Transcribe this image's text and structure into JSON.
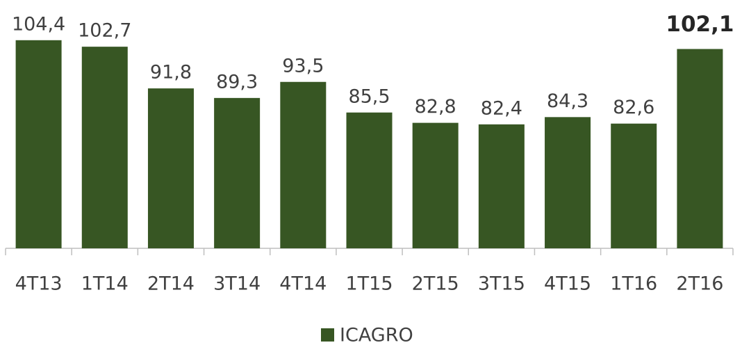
{
  "chart_data": {
    "type": "bar",
    "categories": [
      "4T13",
      "1T14",
      "2T14",
      "3T14",
      "4T14",
      "1T15",
      "2T15",
      "3T15",
      "4T15",
      "1T16",
      "2T16"
    ],
    "series": [
      {
        "name": "ICAGRO",
        "color": "#375623",
        "values": [
          104.4,
          102.7,
          91.8,
          89.3,
          93.5,
          85.5,
          82.8,
          82.4,
          84.3,
          82.6,
          102.1
        ],
        "value_labels": [
          "104,4",
          "102,7",
          "91,8",
          "89,3",
          "93,5",
          "85,5",
          "82,8",
          "82,4",
          "84,3",
          "82,6",
          "102,1"
        ]
      }
    ],
    "ylim": [
      50,
      110
    ],
    "legend": "bottom"
  }
}
